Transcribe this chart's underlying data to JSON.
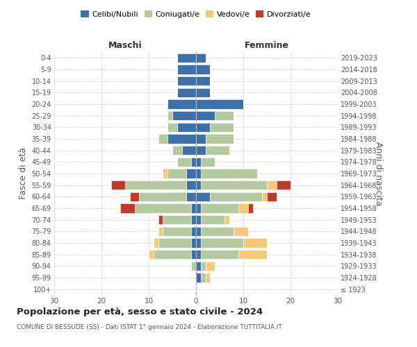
{
  "age_groups": [
    "100+",
    "95-99",
    "90-94",
    "85-89",
    "80-84",
    "75-79",
    "70-74",
    "65-69",
    "60-64",
    "55-59",
    "50-54",
    "45-49",
    "40-44",
    "35-39",
    "30-34",
    "25-29",
    "20-24",
    "15-19",
    "10-14",
    "5-9",
    "0-4"
  ],
  "birth_years": [
    "≤ 1923",
    "1924-1928",
    "1929-1933",
    "1934-1938",
    "1939-1943",
    "1944-1948",
    "1949-1953",
    "1954-1958",
    "1959-1963",
    "1964-1968",
    "1969-1973",
    "1974-1978",
    "1979-1983",
    "1984-1988",
    "1989-1993",
    "1994-1998",
    "1999-2003",
    "2004-2008",
    "2009-2013",
    "2014-2018",
    "2019-2023"
  ],
  "colors": {
    "celibi": "#3d6fa8",
    "coniugati": "#b5c9a0",
    "vedovi": "#f5c97a",
    "divorziati": "#c0392b"
  },
  "males": {
    "celibi": [
      0,
      0,
      0,
      1,
      1,
      1,
      1,
      1,
      2,
      2,
      2,
      1,
      3,
      6,
      4,
      5,
      6,
      4,
      4,
      4,
      4
    ],
    "coniugati": [
      0,
      0,
      1,
      8,
      7,
      6,
      6,
      12,
      10,
      13,
      4,
      3,
      2,
      2,
      2,
      1,
      0,
      0,
      0,
      0,
      0
    ],
    "vedovi": [
      0,
      0,
      0,
      1,
      1,
      1,
      0,
      0,
      0,
      0,
      1,
      0,
      0,
      0,
      0,
      0,
      0,
      0,
      0,
      0,
      0
    ],
    "divorziati": [
      0,
      0,
      0,
      0,
      0,
      0,
      1,
      3,
      2,
      3,
      0,
      0,
      0,
      0,
      0,
      0,
      0,
      0,
      0,
      0,
      0
    ]
  },
  "females": {
    "celibi": [
      0,
      1,
      1,
      1,
      1,
      1,
      1,
      1,
      3,
      1,
      1,
      1,
      2,
      2,
      3,
      4,
      10,
      3,
      3,
      3,
      2
    ],
    "coniugati": [
      0,
      1,
      1,
      8,
      9,
      7,
      5,
      8,
      11,
      14,
      12,
      3,
      5,
      6,
      5,
      4,
      0,
      0,
      0,
      0,
      0
    ],
    "vedovi": [
      0,
      1,
      2,
      6,
      5,
      3,
      1,
      2,
      1,
      2,
      0,
      0,
      0,
      0,
      0,
      0,
      0,
      0,
      0,
      0,
      0
    ],
    "divorziati": [
      0,
      0,
      0,
      0,
      0,
      0,
      0,
      1,
      2,
      3,
      0,
      0,
      0,
      0,
      0,
      0,
      0,
      0,
      0,
      0,
      0
    ]
  },
  "xlim": 30,
  "title": "Popolazione per età, sesso e stato civile - 2024",
  "subtitle": "COMUNE DI BESSUDE (SS) - Dati ISTAT 1° gennaio 2024 - Elaborazione TUTTITALIA.IT",
  "ylabel_left": "Fasce di età",
  "ylabel_right": "Anni di nascita",
  "xlabel_left": "Maschi",
  "xlabel_right": "Femmine",
  "legend_labels": [
    "Celibi/Nubili",
    "Coniugati/e",
    "Vedovi/e",
    "Divorziati/e"
  ],
  "bg_color": "#ffffff",
  "grid_color": "#cccccc"
}
